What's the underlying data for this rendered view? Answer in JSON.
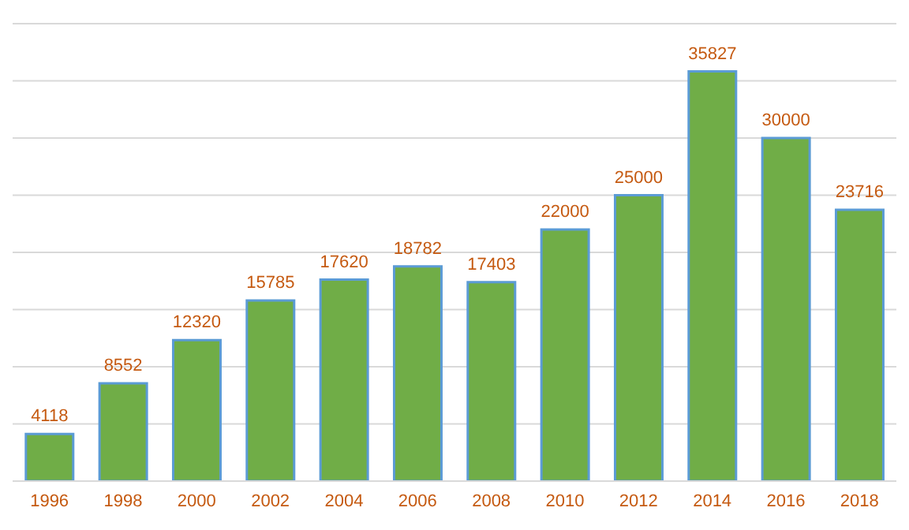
{
  "chart_data": {
    "type": "bar",
    "categories": [
      "1996",
      "1998",
      "2000",
      "2002",
      "2004",
      "2006",
      "2008",
      "2010",
      "2012",
      "2014",
      "2016",
      "2018"
    ],
    "values": [
      4118,
      8552,
      12320,
      15785,
      17620,
      18782,
      17403,
      22000,
      25000,
      35827,
      30000,
      23716
    ],
    "color": "#70ad47",
    "ylim": [
      0,
      40000
    ],
    "yticks": [
      0,
      5000,
      10000,
      15000,
      20000,
      25000,
      30000,
      35000,
      40000
    ],
    "grid": "y",
    "tick_labels": "x",
    "data_labels": true
  }
}
